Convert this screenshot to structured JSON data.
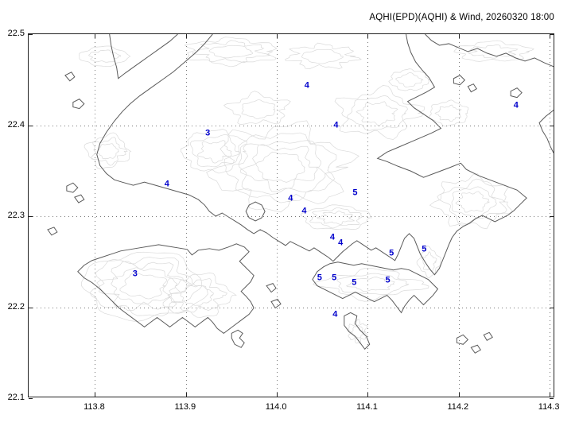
{
  "header": {
    "title": "AQHI(EPD)(AQHI) & Wind, 20260320 18:00"
  },
  "chart_data": {
    "type": "map",
    "subtype": "contour-coastline-map-with-station-values",
    "region": "Hong Kong",
    "title": "AQHI(EPD)(AQHI) & Wind, 20260320 18:00",
    "datetime_label": "20260320 18:00",
    "x_axis": {
      "name": "longitude",
      "min": 113.727,
      "max": 114.306,
      "ticks": [
        113.8,
        113.9,
        114.0,
        114.1,
        114.2,
        114.3
      ],
      "tick_labels": [
        "113.8",
        "113.9",
        "114.0",
        "114.1",
        "114.2",
        "114.3"
      ]
    },
    "y_axis": {
      "name": "latitude",
      "min": 22.1,
      "max": 22.5,
      "ticks": [
        22.1,
        22.2,
        22.3,
        22.4,
        22.5
      ],
      "tick_labels": [
        "22.1",
        "22.2",
        "22.3",
        "22.4",
        "22.5"
      ]
    },
    "grid": {
      "style": "dotted",
      "color": "#777777"
    },
    "stations": [
      {
        "lon": 114.033,
        "lat": 22.443,
        "value": 4
      },
      {
        "lon": 114.263,
        "lat": 22.421,
        "value": 4
      },
      {
        "lon": 114.065,
        "lat": 22.4,
        "value": 4
      },
      {
        "lon": 113.924,
        "lat": 22.391,
        "value": 3
      },
      {
        "lon": 113.879,
        "lat": 22.335,
        "value": 4
      },
      {
        "lon": 114.086,
        "lat": 22.325,
        "value": 5
      },
      {
        "lon": 114.015,
        "lat": 22.319,
        "value": 4
      },
      {
        "lon": 114.03,
        "lat": 22.305,
        "value": 4
      },
      {
        "lon": 114.061,
        "lat": 22.276,
        "value": 4
      },
      {
        "lon": 114.07,
        "lat": 22.27,
        "value": 4
      },
      {
        "lon": 114.162,
        "lat": 22.263,
        "value": 5
      },
      {
        "lon": 114.126,
        "lat": 22.259,
        "value": 5
      },
      {
        "lon": 113.844,
        "lat": 22.236,
        "value": 3
      },
      {
        "lon": 114.047,
        "lat": 22.232,
        "value": 5
      },
      {
        "lon": 114.063,
        "lat": 22.232,
        "value": 5
      },
      {
        "lon": 114.085,
        "lat": 22.227,
        "value": 5
      },
      {
        "lon": 114.122,
        "lat": 22.229,
        "value": 5
      },
      {
        "lon": 114.064,
        "lat": 22.192,
        "value": 4
      }
    ],
    "station_value_color": "#0000cc",
    "coastline_color": "#5a5a5a",
    "terrain_contour_color": "#dadada"
  }
}
